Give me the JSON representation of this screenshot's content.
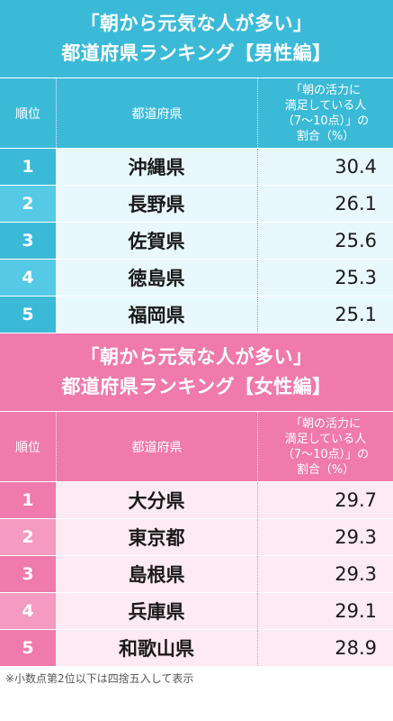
{
  "male": {
    "title_line1": "「朝から元気な人が多い」",
    "title_line2": "都道府県ランキング【男性編】",
    "header": {
      "rank": "順位",
      "prefecture": "都道府県",
      "value_line1": "「朝の活力に",
      "value_line2": "満足している人",
      "value_line3": "（7〜10点）」の",
      "value_line4": "割合（%）"
    },
    "rows": [
      {
        "rank": "1",
        "prefecture": "沖縄県",
        "value": "30.4"
      },
      {
        "rank": "2",
        "prefecture": "長野県",
        "value": "26.1"
      },
      {
        "rank": "3",
        "prefecture": "佐賀県",
        "value": "25.6"
      },
      {
        "rank": "4",
        "prefecture": "徳島県",
        "value": "25.3"
      },
      {
        "rank": "5",
        "prefecture": "福岡県",
        "value": "25.1"
      }
    ]
  },
  "female": {
    "title_line1": "「朝から元気な人が多い」",
    "title_line2": "都道府県ランキング【女性編】",
    "header": {
      "rank": "順位",
      "prefecture": "都道府県",
      "value_line1": "「朝の活力に",
      "value_line2": "満足している人",
      "value_line3": "（7〜10点）」の",
      "value_line4": "割合（%）"
    },
    "rows": [
      {
        "rank": "1",
        "prefecture": "大分県",
        "value": "29.7"
      },
      {
        "rank": "2",
        "prefecture": "東京都",
        "value": "29.3"
      },
      {
        "rank": "3",
        "prefecture": "島根県",
        "value": "29.3"
      },
      {
        "rank": "4",
        "prefecture": "兵庫県",
        "value": "29.1"
      },
      {
        "rank": "5",
        "prefecture": "和歌山県",
        "value": "28.9"
      }
    ]
  },
  "note": "※小数点第2位以下は四捨五入して表示",
  "colors": {
    "male_accent": "#3bbad8",
    "male_row_bg": "#e9f8fc",
    "female_accent": "#ef7aab",
    "female_row_bg": "#fdeaf2"
  }
}
